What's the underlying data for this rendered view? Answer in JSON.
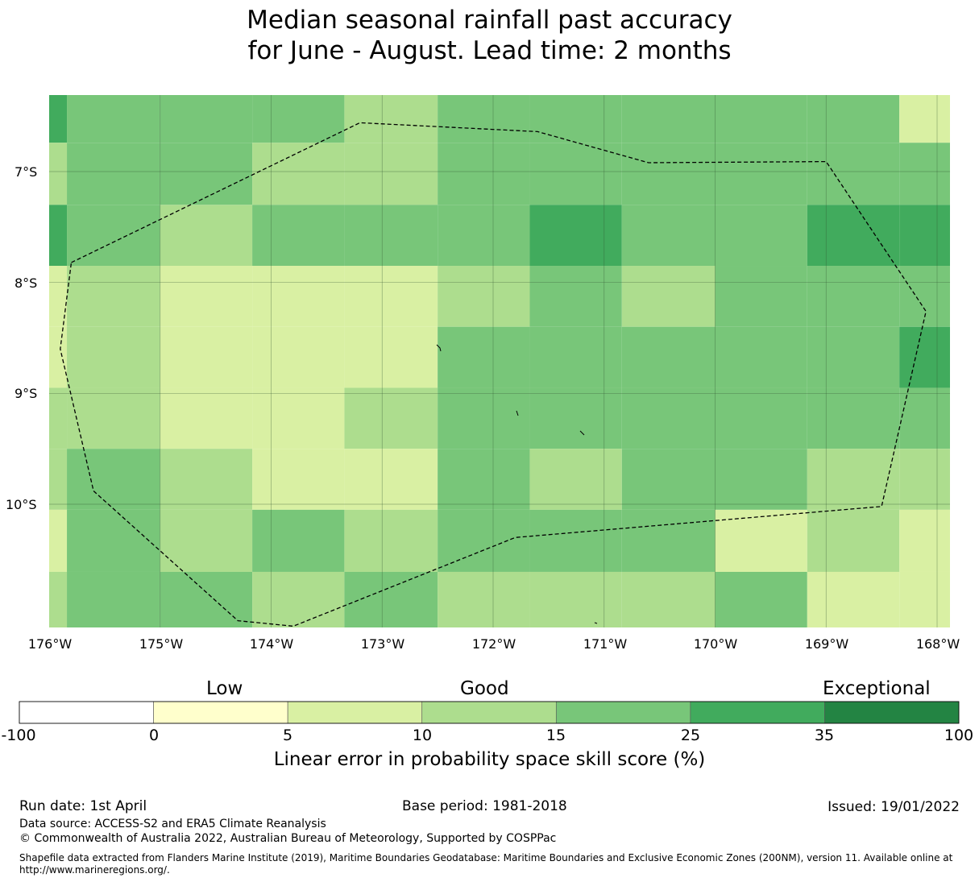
{
  "title": {
    "line1": "Median seasonal rainfall past accuracy",
    "line2": "for June - August. Lead time: 2 months"
  },
  "map": {
    "lon_labels": [
      "176°W",
      "175°W",
      "174°W",
      "173°W",
      "172°W",
      "171°W",
      "170°W",
      "169°W",
      "168°W"
    ],
    "lat_labels": [
      "7°S",
      "8°S",
      "9°S",
      "10°S"
    ],
    "col_edges_lon": [
      -176,
      -175.84,
      -175,
      -174.17,
      -173.34,
      -172.5,
      -171.67,
      -170.84,
      -170,
      -169.17,
      -168.34,
      -167.9
    ],
    "row_edges_lat": [
      -6.37,
      -6.74,
      -7.3,
      -7.85,
      -8.4,
      -8.95,
      -9.5,
      -10.05,
      -10.61,
      -11.15
    ],
    "color_index_grid": [
      [
        5,
        4,
        4,
        4,
        3,
        4,
        4,
        4,
        4,
        4,
        2
      ],
      [
        3,
        4,
        4,
        3,
        3,
        4,
        4,
        4,
        4,
        4,
        4
      ],
      [
        5,
        4,
        3,
        4,
        4,
        4,
        5,
        4,
        4,
        5,
        5
      ],
      [
        2,
        3,
        2,
        2,
        2,
        3,
        4,
        3,
        4,
        4,
        4
      ],
      [
        2,
        3,
        2,
        2,
        2,
        4,
        4,
        4,
        4,
        4,
        5
      ],
      [
        3,
        3,
        2,
        2,
        3,
        4,
        4,
        4,
        4,
        4,
        4
      ],
      [
        3,
        4,
        3,
        2,
        2,
        4,
        3,
        4,
        4,
        3,
        3
      ],
      [
        2,
        4,
        3,
        4,
        3,
        4,
        4,
        4,
        2,
        3,
        2
      ],
      [
        3,
        4,
        4,
        3,
        4,
        3,
        3,
        3,
        4,
        2,
        2
      ]
    ],
    "eez_boundary": [
      [
        -175.8,
        -7.82
      ],
      [
        -173.2,
        -6.56
      ],
      [
        -171.6,
        -6.64
      ],
      [
        -170.6,
        -6.92
      ],
      [
        -169.0,
        -6.91
      ],
      [
        -168.1,
        -8.26
      ],
      [
        -168.5,
        -10.02
      ],
      [
        -171.8,
        -10.3
      ],
      [
        -173.8,
        -11.1
      ],
      [
        -174.3,
        -11.05
      ],
      [
        -175.6,
        -9.88
      ],
      [
        -175.9,
        -8.6
      ],
      [
        -175.8,
        -7.82
      ]
    ]
  },
  "colorbar": {
    "categories": [
      {
        "label": "Low",
        "center_value": 0
      },
      {
        "label": "Good",
        "center_value": 15
      },
      {
        "label": "Exceptional",
        "center_value": 35
      }
    ],
    "ticks": [
      "-100",
      "0",
      "5",
      "10",
      "15",
      "25",
      "35",
      "100"
    ],
    "colors": [
      "#ffffff",
      "#ffffcc",
      "#d9f0a3",
      "#addd8e",
      "#78c679",
      "#41ab5d",
      "#238443"
    ],
    "title": "Linear error in probability space skill score (%)"
  },
  "footer": {
    "run_date": "Run date: 1st April",
    "base_period": "Base period: 1981-2018",
    "issued": "Issued: 19/01/2022",
    "data_source": "Data source: ACCESS-S2 and ERA5 Climate Reanalysis",
    "copyright": "© Commonwealth of Australia 2022, Australian Bureau of Meteorology, Supported by COSPPac",
    "shapefile_line1": "Shapefile data extracted from Flanders Marine Institute (2019), Maritime Boundaries Geodatabase: Maritime Boundaries and Exclusive Economic Zones (200NM), version 11. Available online at",
    "shapefile_line2": "http://www.marineregions.org/."
  }
}
